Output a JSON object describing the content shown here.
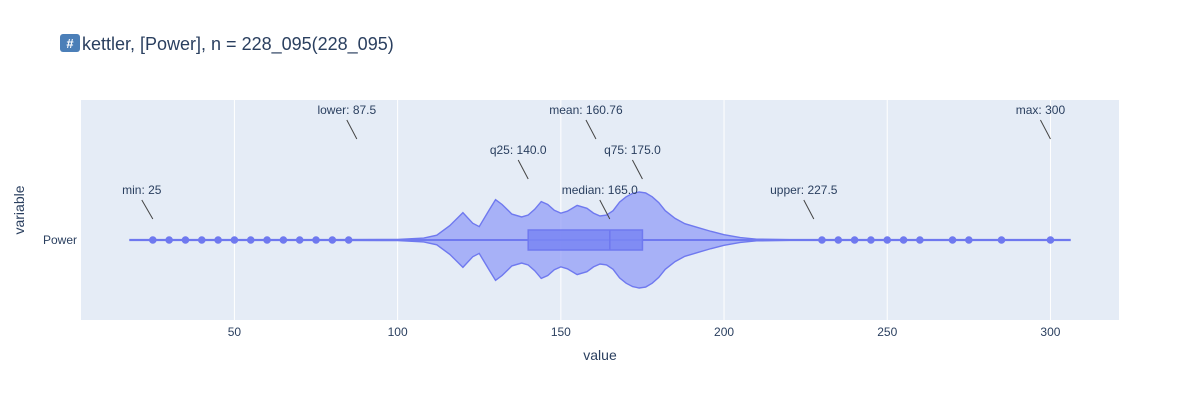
{
  "chart_data": {
    "type": "violin",
    "title": {
      "icon": "hash-keycap-icon",
      "icon_text": "#",
      "text": "kettler, [Power], n = 228_095(228_095)"
    },
    "xlabel": "value",
    "ylabel": "variable",
    "categories": [
      "Power"
    ],
    "x_ticks": [
      "50",
      "100",
      "150",
      "200",
      "250",
      "300"
    ],
    "x_tick_values": [
      50,
      100,
      150,
      200,
      250,
      300
    ],
    "xlim": [
      3,
      321
    ],
    "grid": true,
    "legend": "none",
    "summary": {
      "min": 25,
      "lower": 87.5,
      "q25": 140,
      "median": 165,
      "mean": 160.76,
      "q75": 175,
      "upper": 227.5,
      "max": 300
    },
    "outliers_low": [
      25,
      30,
      35,
      40,
      45,
      50,
      55,
      60,
      65,
      70,
      75,
      80,
      85
    ],
    "outliers_high": [
      230,
      235,
      240,
      245,
      250,
      255,
      260,
      270,
      275,
      285,
      300
    ],
    "violin_extent": [
      18,
      306
    ],
    "density_profile": [
      [
        18,
        0.008
      ],
      [
        40,
        0.008
      ],
      [
        60,
        0.008
      ],
      [
        80,
        0.008
      ],
      [
        100,
        0.012
      ],
      [
        108,
        0.04
      ],
      [
        112,
        0.1
      ],
      [
        116,
        0.3
      ],
      [
        120,
        0.57
      ],
      [
        123,
        0.35
      ],
      [
        125,
        0.28
      ],
      [
        128,
        0.62
      ],
      [
        130,
        0.84
      ],
      [
        132,
        0.74
      ],
      [
        135,
        0.54
      ],
      [
        138,
        0.48
      ],
      [
        140,
        0.52
      ],
      [
        142,
        0.64
      ],
      [
        144,
        0.8
      ],
      [
        146,
        0.74
      ],
      [
        148,
        0.62
      ],
      [
        150,
        0.56
      ],
      [
        152,
        0.6
      ],
      [
        155,
        0.72
      ],
      [
        158,
        0.66
      ],
      [
        160,
        0.56
      ],
      [
        162,
        0.5
      ],
      [
        164,
        0.52
      ],
      [
        166,
        0.61
      ],
      [
        168,
        0.79
      ],
      [
        170,
        0.9
      ],
      [
        172,
        0.97
      ],
      [
        174,
        1.0
      ],
      [
        176,
        0.98
      ],
      [
        178,
        0.9
      ],
      [
        180,
        0.78
      ],
      [
        182,
        0.61
      ],
      [
        185,
        0.45
      ],
      [
        188,
        0.34
      ],
      [
        192,
        0.26
      ],
      [
        196,
        0.18
      ],
      [
        200,
        0.11
      ],
      [
        205,
        0.05
      ],
      [
        210,
        0.018
      ],
      [
        220,
        0.008
      ],
      [
        240,
        0.008
      ],
      [
        260,
        0.008
      ],
      [
        280,
        0.008
      ],
      [
        306,
        0.008
      ]
    ],
    "annotations": [
      {
        "key": "min",
        "label": "min: 25",
        "value": 25,
        "row": 3
      },
      {
        "key": "lower",
        "label": "lower: 87.5",
        "value": 87.5,
        "row": 1
      },
      {
        "key": "q25",
        "label": "q25: 140.0",
        "value": 140,
        "row": 2
      },
      {
        "key": "mean",
        "label": "mean: 160.76",
        "value": 160.76,
        "row": 1
      },
      {
        "key": "q75",
        "label": "q75: 175.0",
        "value": 175,
        "row": 2
      },
      {
        "key": "median",
        "label": "median: 165.0",
        "value": 165,
        "row": 3
      },
      {
        "key": "upper",
        "label": "upper: 227.5",
        "value": 227.5,
        "row": 3
      },
      {
        "key": "max",
        "label": "max: 300",
        "value": 300,
        "row": 1
      }
    ],
    "colors": {
      "plot_background": "#e5ecf6",
      "grid": "#ffffff",
      "violin_fill": "#8f9af7",
      "violin_stroke": "#6f79ef",
      "box_fill": "#7b86f4",
      "box_stroke": "#6f79ef",
      "marker": "#6f79ef",
      "text": "#2a3f5f",
      "annotation_line": "#444444",
      "badge_fill": "#4b7fb8"
    }
  }
}
